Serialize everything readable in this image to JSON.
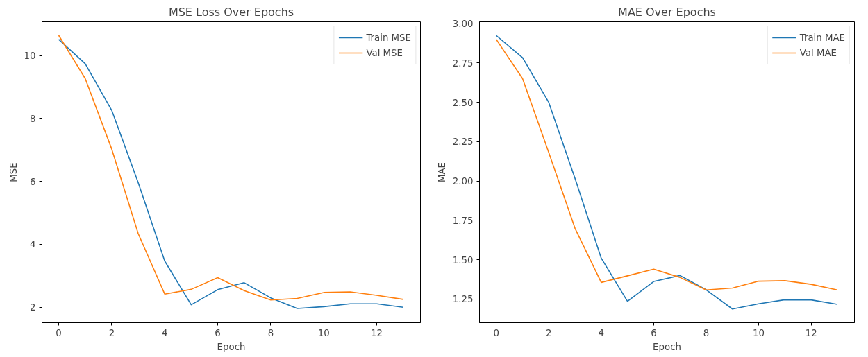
{
  "chart_data": [
    {
      "type": "line",
      "title": "MSE Loss Over Epochs",
      "xlabel": "Epoch",
      "ylabel": "MSE",
      "x": [
        0,
        1,
        2,
        3,
        4,
        5,
        6,
        7,
        8,
        9,
        10,
        11,
        12,
        13
      ],
      "series": [
        {
          "name": "Train MSE",
          "color": "#1f77b4",
          "values": [
            10.51,
            9.74,
            8.26,
            5.96,
            3.47,
            2.08,
            2.56,
            2.78,
            2.3,
            1.96,
            2.02,
            2.11,
            2.11,
            2.0
          ]
        },
        {
          "name": "Val MSE",
          "color": "#ff7f0e",
          "values": [
            10.64,
            9.27,
            7.03,
            4.34,
            2.42,
            2.57,
            2.94,
            2.53,
            2.23,
            2.28,
            2.47,
            2.49,
            2.38,
            2.25
          ]
        }
      ],
      "xlim": [
        -0.63,
        13.65
      ],
      "ylim": [
        1.51,
        11.07
      ],
      "xticks": [
        0,
        2,
        4,
        6,
        8,
        10,
        12
      ],
      "yticks": [
        2,
        4,
        6,
        8,
        10
      ],
      "grid": false,
      "legend": "top right",
      "line_style": "solid",
      "marker": "none"
    },
    {
      "type": "line",
      "title": "MAE Over Epochs",
      "xlabel": "Epoch",
      "ylabel": "MAE",
      "x": [
        0,
        1,
        2,
        3,
        4,
        5,
        6,
        7,
        8,
        9,
        10,
        11,
        12,
        13
      ],
      "series": [
        {
          "name": "Train MAE",
          "color": "#1f77b4",
          "values": [
            2.925,
            2.785,
            2.5,
            2.017,
            1.51,
            1.236,
            1.362,
            1.4,
            1.309,
            1.187,
            1.22,
            1.246,
            1.245,
            1.217
          ]
        },
        {
          "name": "Val MAE",
          "color": "#ff7f0e",
          "values": [
            2.9,
            2.652,
            2.182,
            1.7,
            1.356,
            1.398,
            1.44,
            1.388,
            1.308,
            1.32,
            1.364,
            1.367,
            1.344,
            1.308
          ]
        }
      ],
      "xlim": [
        -0.64,
        13.65
      ],
      "ylim": [
        1.1,
        3.012
      ],
      "xticks": [
        0,
        2,
        4,
        6,
        8,
        10,
        12
      ],
      "yticks": [
        {
          "value": 1.25,
          "label": "1.25"
        },
        {
          "value": 1.5,
          "label": "1.50"
        },
        {
          "value": 1.75,
          "label": "1.75"
        },
        {
          "value": 2.0,
          "label": "2.00"
        },
        {
          "value": 2.25,
          "label": "2.25"
        },
        {
          "value": 2.5,
          "label": "2.50"
        },
        {
          "value": 2.75,
          "label": "2.75"
        },
        {
          "value": 3.0,
          "label": "3.00"
        }
      ],
      "grid": false,
      "legend": "top right",
      "line_style": "solid",
      "marker": "none"
    }
  ]
}
